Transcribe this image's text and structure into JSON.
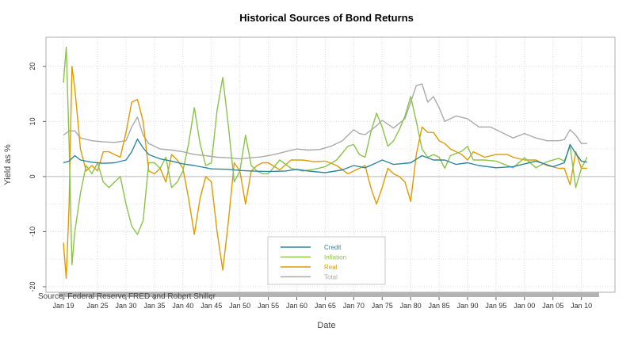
{
  "chart_data": {
    "type": "line",
    "title": "Historical Sources of Bond Returns",
    "xlabel": "Date",
    "ylabel": "Yield as %",
    "source": "Source: Federal Reserve FRED and Robert Shiller",
    "ylim": [
      -20,
      25
    ],
    "xlim": [
      1919,
      2012
    ],
    "yticks": [
      -20,
      -10,
      0,
      10,
      20
    ],
    "yticklabels": [
      "-20",
      "-10",
      "0",
      "10",
      "20"
    ],
    "xticks": [
      1919,
      1925,
      1930,
      1935,
      1940,
      1945,
      1950,
      1955,
      1960,
      1965,
      1970,
      1975,
      1980,
      1985,
      1990,
      1995,
      2000,
      2005,
      2010
    ],
    "xticklabels": [
      "Jan 19",
      "Jan 25",
      "Jan 30",
      "Jan 35",
      "Jan 40",
      "Jan 45",
      "Jan 50",
      "Jan 55",
      "Jan 60",
      "Jan 65",
      "Jan 70",
      "Jan 75",
      "Jan 80",
      "Jan 85",
      "Jan 90",
      "Jan 95",
      "Jan 00",
      "Jan 05",
      "Jan 10"
    ],
    "grid": true,
    "legend_position": "bottom-center",
    "series": [
      {
        "name": "Credit",
        "color": "#2e86a0",
        "points": [
          [
            1919,
            2.5
          ],
          [
            1920,
            2.8
          ],
          [
            1921,
            3.8
          ],
          [
            1922,
            3.0
          ],
          [
            1924,
            2.6
          ],
          [
            1926,
            2.4
          ],
          [
            1928,
            2.5
          ],
          [
            1930,
            3.0
          ],
          [
            1931,
            4.5
          ],
          [
            1932,
            6.8
          ],
          [
            1933,
            5.2
          ],
          [
            1934,
            4.0
          ],
          [
            1936,
            3.2
          ],
          [
            1938,
            2.8
          ],
          [
            1940,
            2.3
          ],
          [
            1942,
            2.0
          ],
          [
            1945,
            1.4
          ],
          [
            1948,
            1.3
          ],
          [
            1950,
            1.1
          ],
          [
            1952,
            1.0
          ],
          [
            1955,
            0.9
          ],
          [
            1958,
            1.0
          ],
          [
            1960,
            1.3
          ],
          [
            1962,
            1.0
          ],
          [
            1965,
            0.7
          ],
          [
            1968,
            1.2
          ],
          [
            1970,
            2.0
          ],
          [
            1972,
            1.6
          ],
          [
            1974,
            2.5
          ],
          [
            1975,
            3.0
          ],
          [
            1977,
            2.2
          ],
          [
            1980,
            2.5
          ],
          [
            1982,
            3.8
          ],
          [
            1984,
            3.0
          ],
          [
            1986,
            3.0
          ],
          [
            1988,
            2.2
          ],
          [
            1990,
            2.5
          ],
          [
            1992,
            2.0
          ],
          [
            1995,
            1.6
          ],
          [
            1998,
            1.8
          ],
          [
            2000,
            2.3
          ],
          [
            2002,
            2.8
          ],
          [
            2005,
            1.8
          ],
          [
            2007,
            2.5
          ],
          [
            2008,
            5.8
          ],
          [
            2009,
            4.2
          ],
          [
            2010,
            2.8
          ],
          [
            2011,
            2.6
          ]
        ]
      },
      {
        "name": "Inflation",
        "color": "#8bc34a",
        "points": [
          [
            1919,
            17
          ],
          [
            1919.5,
            23.5
          ],
          [
            1920,
            6
          ],
          [
            1920.5,
            -16
          ],
          [
            1921,
            -10
          ],
          [
            1922,
            -3
          ],
          [
            1923,
            2
          ],
          [
            1924,
            0.5
          ],
          [
            1925,
            2.5
          ],
          [
            1926,
            -1
          ],
          [
            1927,
            -2
          ],
          [
            1928,
            -1
          ],
          [
            1929,
            0
          ],
          [
            1930,
            -5
          ],
          [
            1931,
            -9
          ],
          [
            1932,
            -10.5
          ],
          [
            1933,
            -8
          ],
          [
            1934,
            2.5
          ],
          [
            1935,
            2.5
          ],
          [
            1936,
            1.5
          ],
          [
            1937,
            3.5
          ],
          [
            1938,
            -2
          ],
          [
            1939,
            -1
          ],
          [
            1940,
            1
          ],
          [
            1941,
            6
          ],
          [
            1942,
            12.5
          ],
          [
            1943,
            6
          ],
          [
            1944,
            2
          ],
          [
            1945,
            2.5
          ],
          [
            1946,
            12
          ],
          [
            1947,
            18
          ],
          [
            1948,
            9
          ],
          [
            1949,
            -1
          ],
          [
            1950,
            1
          ],
          [
            1951,
            7.5
          ],
          [
            1952,
            2
          ],
          [
            1953,
            1
          ],
          [
            1954,
            0.5
          ],
          [
            1955,
            0.5
          ],
          [
            1957,
            3
          ],
          [
            1959,
            1.5
          ],
          [
            1961,
            1
          ],
          [
            1963,
            1.3
          ],
          [
            1965,
            1.8
          ],
          [
            1967,
            3
          ],
          [
            1969,
            5.5
          ],
          [
            1970,
            5.8
          ],
          [
            1971,
            4
          ],
          [
            1972,
            3.5
          ],
          [
            1973,
            8
          ],
          [
            1974,
            11.5
          ],
          [
            1975,
            9
          ],
          [
            1976,
            5.5
          ],
          [
            1977,
            6.5
          ],
          [
            1978,
            8.5
          ],
          [
            1979,
            11
          ],
          [
            1980,
            14.5
          ],
          [
            1981,
            10
          ],
          [
            1982,
            5
          ],
          [
            1983,
            3.5
          ],
          [
            1984,
            4
          ],
          [
            1985,
            3.5
          ],
          [
            1986,
            1.5
          ],
          [
            1987,
            3.8
          ],
          [
            1989,
            4.6
          ],
          [
            1990,
            5.5
          ],
          [
            1991,
            3
          ],
          [
            1993,
            3
          ],
          [
            1995,
            2.8
          ],
          [
            1997,
            2
          ],
          [
            1998,
            1.6
          ],
          [
            2000,
            3.4
          ],
          [
            2002,
            1.6
          ],
          [
            2004,
            2.7
          ],
          [
            2006,
            3.3
          ],
          [
            2007,
            2.8
          ],
          [
            2008,
            5.5
          ],
          [
            2009,
            -2
          ],
          [
            2010,
            1.5
          ],
          [
            2011,
            3.5
          ]
        ]
      },
      {
        "name": "Real",
        "color": "#e09b00",
        "points": [
          [
            1919,
            -12
          ],
          [
            1919.5,
            -18.5
          ],
          [
            1920,
            -5
          ],
          [
            1920.5,
            20
          ],
          [
            1921,
            16
          ],
          [
            1922,
            5
          ],
          [
            1923,
            1
          ],
          [
            1924,
            2
          ],
          [
            1925,
            1
          ],
          [
            1926,
            4.5
          ],
          [
            1927,
            4.5
          ],
          [
            1928,
            4
          ],
          [
            1929,
            3.5
          ],
          [
            1930,
            8
          ],
          [
            1931,
            13.5
          ],
          [
            1932,
            14
          ],
          [
            1933,
            10
          ],
          [
            1934,
            1
          ],
          [
            1935,
            0.5
          ],
          [
            1936,
            1.5
          ],
          [
            1937,
            -1
          ],
          [
            1938,
            4
          ],
          [
            1939,
            3
          ],
          [
            1940,
            1.5
          ],
          [
            1941,
            -4
          ],
          [
            1942,
            -10.5
          ],
          [
            1943,
            -4
          ],
          [
            1944,
            0
          ],
          [
            1945,
            -1
          ],
          [
            1946,
            -10
          ],
          [
            1947,
            -17
          ],
          [
            1948,
            -8
          ],
          [
            1949,
            2.5
          ],
          [
            1950,
            1
          ],
          [
            1951,
            -5
          ],
          [
            1952,
            1
          ],
          [
            1953,
            2
          ],
          [
            1954,
            2.5
          ],
          [
            1955,
            2.5
          ],
          [
            1957,
            1.2
          ],
          [
            1959,
            3
          ],
          [
            1961,
            3
          ],
          [
            1963,
            2.7
          ],
          [
            1965,
            2.8
          ],
          [
            1967,
            2
          ],
          [
            1969,
            0.5
          ],
          [
            1970,
            1
          ],
          [
            1971,
            1.5
          ],
          [
            1972,
            2
          ],
          [
            1973,
            -2
          ],
          [
            1974,
            -5
          ],
          [
            1975,
            -2
          ],
          [
            1976,
            1.5
          ],
          [
            1977,
            0.5
          ],
          [
            1978,
            0
          ],
          [
            1979,
            -1
          ],
          [
            1980,
            -4.5
          ],
          [
            1981,
            4
          ],
          [
            1982,
            9
          ],
          [
            1983,
            8
          ],
          [
            1984,
            8
          ],
          [
            1985,
            6.5
          ],
          [
            1986,
            6
          ],
          [
            1987,
            5
          ],
          [
            1989,
            4
          ],
          [
            1990,
            3
          ],
          [
            1991,
            4.5
          ],
          [
            1993,
            3.5
          ],
          [
            1995,
            4
          ],
          [
            1997,
            4
          ],
          [
            1998,
            3.5
          ],
          [
            2000,
            3
          ],
          [
            2002,
            3
          ],
          [
            2004,
            2
          ],
          [
            2006,
            1.5
          ],
          [
            2007,
            1.5
          ],
          [
            2008,
            -1.5
          ],
          [
            2009,
            4.5
          ],
          [
            2010,
            1.5
          ],
          [
            2011,
            1.5
          ]
        ]
      },
      {
        "name": "Total",
        "color": "#aaaaaa",
        "points": [
          [
            1919,
            7.5
          ],
          [
            1920,
            8.3
          ],
          [
            1921,
            8.3
          ],
          [
            1922,
            7
          ],
          [
            1924,
            6.5
          ],
          [
            1926,
            6.3
          ],
          [
            1928,
            6.2
          ],
          [
            1930,
            6.5
          ],
          [
            1931,
            9
          ],
          [
            1932,
            10.8
          ],
          [
            1933,
            7.5
          ],
          [
            1934,
            6
          ],
          [
            1936,
            5
          ],
          [
            1938,
            4.8
          ],
          [
            1940,
            4.5
          ],
          [
            1942,
            4
          ],
          [
            1944,
            3.8
          ],
          [
            1946,
            3.5
          ],
          [
            1948,
            3.4
          ],
          [
            1950,
            3.2
          ],
          [
            1952,
            3.4
          ],
          [
            1954,
            3.6
          ],
          [
            1956,
            4
          ],
          [
            1958,
            4.5
          ],
          [
            1960,
            5
          ],
          [
            1962,
            4.8
          ],
          [
            1964,
            4.9
          ],
          [
            1966,
            5.5
          ],
          [
            1968,
            6.5
          ],
          [
            1970,
            8.5
          ],
          [
            1971,
            7.8
          ],
          [
            1972,
            7.6
          ],
          [
            1974,
            9.2
          ],
          [
            1975,
            10.2
          ],
          [
            1977,
            8.8
          ],
          [
            1979,
            10.5
          ],
          [
            1980,
            13.5
          ],
          [
            1981,
            16.5
          ],
          [
            1982,
            16.8
          ],
          [
            1983,
            13.5
          ],
          [
            1984,
            14.5
          ],
          [
            1985,
            12.5
          ],
          [
            1986,
            10
          ],
          [
            1987,
            10.5
          ],
          [
            1988,
            11
          ],
          [
            1990,
            10.5
          ],
          [
            1992,
            9
          ],
          [
            1994,
            9
          ],
          [
            1996,
            8
          ],
          [
            1998,
            7
          ],
          [
            2000,
            7.8
          ],
          [
            2002,
            7
          ],
          [
            2004,
            6.5
          ],
          [
            2006,
            6.5
          ],
          [
            2007,
            6.7
          ],
          [
            2008,
            8.5
          ],
          [
            2009,
            7.5
          ],
          [
            2010,
            6
          ],
          [
            2011,
            6
          ]
        ]
      }
    ]
  }
}
